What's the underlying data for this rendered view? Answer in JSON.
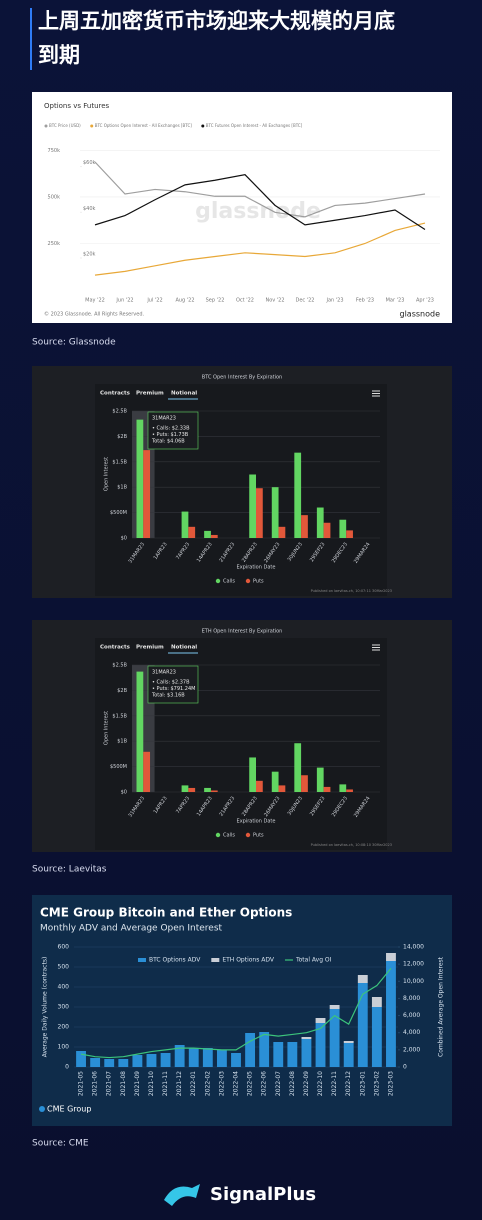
{
  "header": {
    "title": [
      "上周五加密货币市场迎来大规模的月底",
      "到期"
    ]
  },
  "sources": [
    "Source:  Glassnode",
    "Source:  Laevitas",
    "Source:  CME"
  ],
  "brand": "SignalPlus",
  "chart_data": [
    {
      "type": "line",
      "title": "Options vs Futures",
      "watermark": "glassnode",
      "footer": "© 2023 Glassnode. All Rights Reserved.",
      "logo": "glassnode",
      "categories": [
        "May '22",
        "Jun '22",
        "Jul '22",
        "Aug '22",
        "Sep '22",
        "Oct '22",
        "Nov '22",
        "Dec '22",
        "Jan '23",
        "Feb '23",
        "Mar '23",
        "Apr '23"
      ],
      "series": [
        {
          "name": "BTC Price (USD)",
          "color": "#9e9e9e",
          "axis": "y2",
          "values": [
            62000,
            48000,
            50000,
            49000,
            47000,
            47000,
            40000,
            38000,
            43000,
            44000,
            46000,
            48000
          ]
        },
        {
          "name": "BTC Options Open Interest - All Exchanges [BTC]",
          "color": "#e8a838",
          "values": [
            80000,
            100000,
            130000,
            160000,
            180000,
            200000,
            190000,
            180000,
            200000,
            250000,
            320000,
            360000
          ]
        },
        {
          "name": "BTC Futures Open Interest - All Exchanges [BTC]",
          "color": "#111111",
          "values": [
            350000,
            400000,
            485000,
            565000,
            590000,
            620000,
            455000,
            350000,
            375000,
            400000,
            430000,
            325000
          ]
        }
      ],
      "ylim": [
        0,
        860000
      ],
      "yticks": [
        {
          "value": 250000,
          "label": "250k"
        },
        {
          "value": 500000,
          "label": "500k"
        },
        {
          "value": 750000,
          "label": "750k"
        }
      ],
      "y2lim": [
        6000,
        76000
      ],
      "y2ticks": [
        {
          "value": 20000,
          "label": "$20k"
        },
        {
          "value": 40000,
          "label": "$40k"
        },
        {
          "value": 60000,
          "label": "$60k"
        }
      ],
      "grid": true
    },
    {
      "type": "bar",
      "title": "BTC Open Interest By Expiration",
      "tabs": [
        "Contracts",
        "Premium",
        "Notional"
      ],
      "xlabel": "Expiration Date",
      "ylabel": "Open Interest",
      "footer": "Published on laevitas.ch, 10:07:11 30Mar2023",
      "tooltip": {
        "title": "31MAR23",
        "lines": [
          "• Calls: $2.33B",
          "• Puts: $1.73B",
          "Total: $4.06B"
        ]
      },
      "categories": [
        "31MAR23",
        "1APR23",
        "7APR23",
        "14APR23",
        "21APR23",
        "28APR23",
        "26MAY23",
        "30JUN23",
        "29SEP23",
        "29DEC23",
        "29MAR24"
      ],
      "series": [
        {
          "name": "Calls",
          "color": "#62d662",
          "values": [
            2.33,
            0,
            0.52,
            0.14,
            0,
            1.25,
            1.0,
            1.68,
            0.6,
            0.36,
            0
          ]
        },
        {
          "name": "Puts",
          "color": "#e2583a",
          "values": [
            1.73,
            0,
            0.22,
            0.06,
            0,
            0.98,
            0.22,
            0.45,
            0.3,
            0.15,
            0
          ]
        }
      ],
      "ylim": [
        0,
        2.5
      ],
      "yticks": [
        {
          "value": 0,
          "label": "$0"
        },
        {
          "value": 0.5,
          "label": "$500M"
        },
        {
          "value": 1,
          "label": "$1B"
        },
        {
          "value": 1.5,
          "label": "$1.5B"
        },
        {
          "value": 2,
          "label": "$2B"
        },
        {
          "value": 2.5,
          "label": "$2.5B"
        }
      ],
      "grid": true
    },
    {
      "type": "bar",
      "title": "ETH Open Interest By Expiration",
      "tabs": [
        "Contracts",
        "Premium",
        "Notional"
      ],
      "xlabel": "Expiration Date",
      "ylabel": "Open Interest",
      "footer": "Published on laevitas.ch, 10:08:10 30Mar2023",
      "tooltip": {
        "title": "31MAR23",
        "lines": [
          "• Calls: $2.37B",
          "• Puts: $791.24M",
          "Total: $3.16B"
        ]
      },
      "categories": [
        "31MAR23",
        "1APR23",
        "7APR23",
        "14APR23",
        "21APR23",
        "28APR23",
        "26MAY23",
        "30JUN23",
        "29SEP23",
        "29DEC23",
        "29MAR24"
      ],
      "series": [
        {
          "name": "Calls",
          "color": "#62d662",
          "values": [
            2.37,
            0,
            0.13,
            0.08,
            0,
            0.68,
            0.4,
            0.96,
            0.48,
            0.15,
            0
          ]
        },
        {
          "name": "Puts",
          "color": "#e2583a",
          "values": [
            0.79124,
            0,
            0.08,
            0.03,
            0,
            0.22,
            0.13,
            0.33,
            0.1,
            0.05,
            0
          ]
        }
      ],
      "ylim": [
        0,
        2.5
      ],
      "yticks": [
        {
          "value": 0,
          "label": "$0"
        },
        {
          "value": 0.5,
          "label": "$500M"
        },
        {
          "value": 1,
          "label": "$1B"
        },
        {
          "value": 1.5,
          "label": "$1.5B"
        },
        {
          "value": 2,
          "label": "$2B"
        },
        {
          "value": 2.5,
          "label": "$2.5B"
        }
      ],
      "grid": true
    },
    {
      "type": "bar",
      "title": "CME Group Bitcoin and Ether Options",
      "subtitle": "Monthly ADV and Average Open Interest",
      "ylabel": "Average Daily Volume (contracts)",
      "y2label": "Combined Average Open Interest",
      "logo": "CME Group",
      "stacked": true,
      "categories": [
        "2021-05",
        "2021-06",
        "2021-07",
        "2021-08",
        "2021-09",
        "2021-10",
        "2021-11",
        "2021-12",
        "2022-01",
        "2022-02",
        "2022-03",
        "2022-04",
        "2022-05",
        "2022-06",
        "2022-07",
        "2022-08",
        "2022-09",
        "2022-10",
        "2022-11",
        "2022-12",
        "2023-01",
        "2023-02",
        "2023-03"
      ],
      "series": [
        {
          "name": "BTC Options ADV",
          "color": "#2a8fd6",
          "values": [
            80,
            45,
            40,
            40,
            60,
            65,
            70,
            110,
            95,
            95,
            85,
            70,
            170,
            175,
            125,
            125,
            140,
            220,
            290,
            120,
            420,
            300,
            530
          ]
        },
        {
          "name": "ETH Options ADV",
          "color": "#c9ced6",
          "values": [
            0,
            0,
            0,
            0,
            0,
            0,
            0,
            0,
            0,
            0,
            0,
            0,
            0,
            0,
            0,
            0,
            10,
            25,
            20,
            10,
            40,
            50,
            40
          ]
        },
        {
          "name": "Total Avg OI",
          "color": "#3cc47c",
          "axis": "y2",
          "values": [
            1500,
            1200,
            1100,
            1200,
            1500,
            1800,
            2000,
            2200,
            2200,
            2100,
            2000,
            2000,
            3000,
            3800,
            3600,
            3800,
            4000,
            4500,
            6000,
            5000,
            8500,
            9500,
            11500
          ]
        }
      ],
      "ylim": [
        0,
        600
      ],
      "yticks": [
        0,
        100,
        200,
        300,
        400,
        500,
        600
      ],
      "y2lim": [
        0,
        14000
      ],
      "y2ticks": [
        0,
        {
          "value": 2000,
          "label": "2,000"
        },
        {
          "value": 4000,
          "label": "4,000"
        },
        {
          "value": 6000,
          "label": "6,000"
        },
        {
          "value": 8000,
          "label": "8,000"
        },
        {
          "value": 10000,
          "label": "10,000"
        },
        {
          "value": 12000,
          "label": "12,000"
        },
        {
          "value": 14000,
          "label": "14,000"
        }
      ],
      "grid": true
    }
  ]
}
